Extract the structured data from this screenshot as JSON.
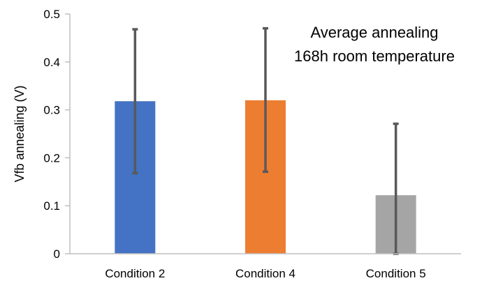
{
  "chart_data": {
    "type": "bar",
    "title": "",
    "xlabel": "",
    "ylabel": "Vfb annealing (V)",
    "ylim": [
      0,
      0.5
    ],
    "yticks": [
      0,
      0.1,
      0.2,
      0.3,
      0.4,
      0.5
    ],
    "ytick_labels": [
      "0",
      "0.1",
      "0.2",
      "0.3",
      "0.4",
      "0.5"
    ],
    "grid": false,
    "legend": "none",
    "categories": [
      "Condition 2",
      "Condition 4",
      "Condition 5"
    ],
    "values": [
      0.318,
      0.32,
      0.122
    ],
    "error_low": [
      0.168,
      0.171,
      0.0
    ],
    "error_high": [
      0.468,
      0.47,
      0.271
    ],
    "colors": [
      "#4472C4",
      "#ED7D31",
      "#A5A5A5"
    ],
    "error_bar_color": "#595959",
    "annotations": [
      "Average annealing",
      "168h room temperature"
    ]
  }
}
